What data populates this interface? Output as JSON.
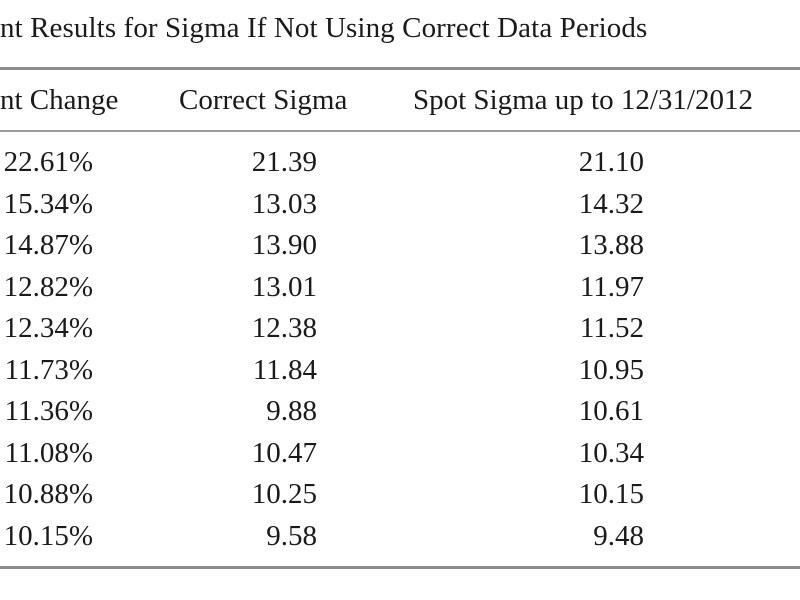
{
  "title": "nt Results for Sigma If Not Using Correct Data Periods",
  "columns": {
    "change": "nt Change",
    "correct": "Correct Sigma",
    "spot": "Spot Sigma up to 12/31/2012"
  },
  "rows": [
    {
      "change": "22.61%",
      "correct": "21.39",
      "spot": "21.10"
    },
    {
      "change": "15.34%",
      "correct": "13.03",
      "spot": "14.32"
    },
    {
      "change": "14.87%",
      "correct": "13.90",
      "spot": "13.88"
    },
    {
      "change": "12.82%",
      "correct": "13.01",
      "spot": "11.97"
    },
    {
      "change": "12.34%",
      "correct": "12.38",
      "spot": "11.52"
    },
    {
      "change": "11.73%",
      "correct": "11.84",
      "spot": "10.95"
    },
    {
      "change": "11.36%",
      "correct": "9.88",
      "spot": "10.61"
    },
    {
      "change": "11.08%",
      "correct": "10.47",
      "spot": "10.34"
    },
    {
      "change": "10.88%",
      "correct": "10.25",
      "spot": "10.15"
    },
    {
      "change": "10.15%",
      "correct": "9.58",
      "spot": "9.48"
    }
  ]
}
